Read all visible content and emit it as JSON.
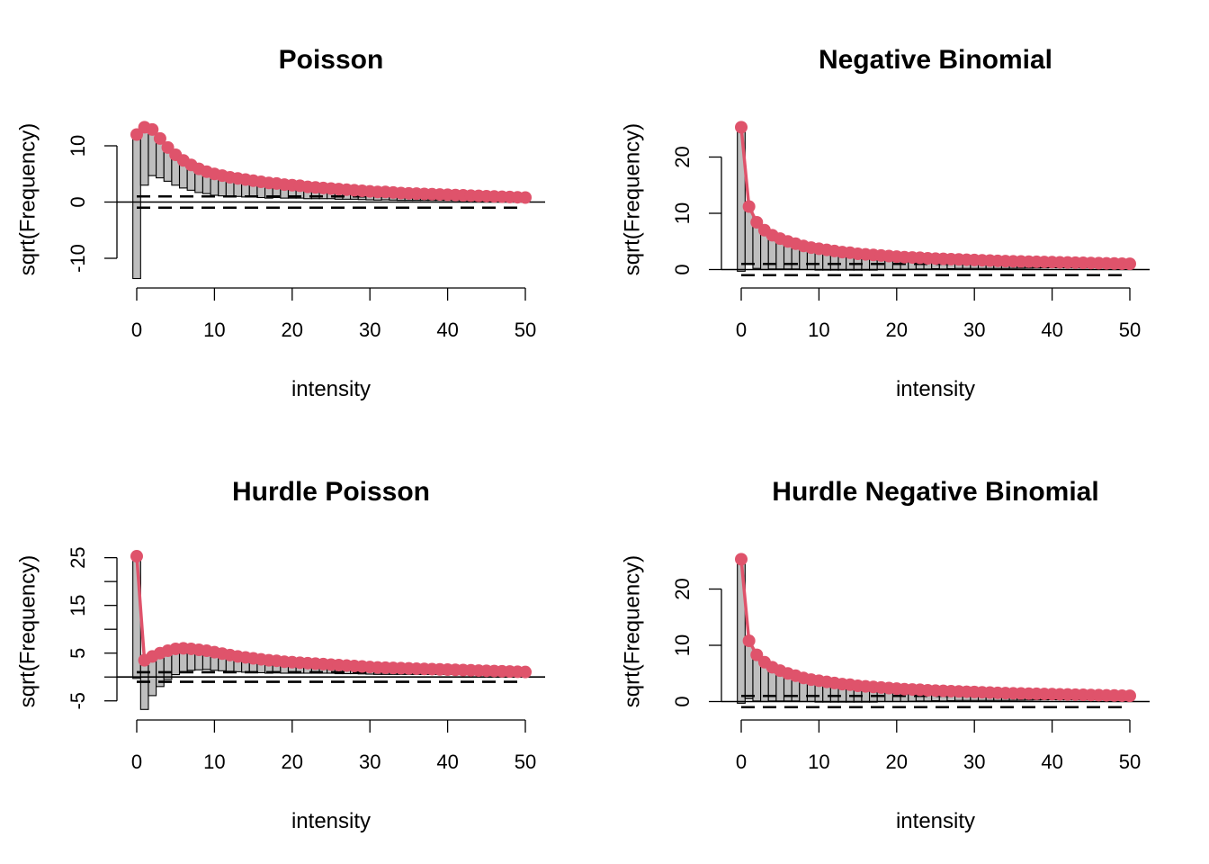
{
  "chart_data": [
    {
      "type": "rootogram",
      "style": "hanging",
      "title": "Poisson",
      "xlabel": "intensity",
      "ylabel": "sqrt(Frequency)",
      "xlim": [
        0,
        50
      ],
      "ylim": [
        -14,
        14
      ],
      "xticks": [
        0,
        10,
        20,
        30,
        40,
        50
      ],
      "yticks": [
        -10,
        0,
        10
      ],
      "ytick_labels": [
        "-10",
        "0",
        "10"
      ],
      "reference_lines": [
        -1,
        1
      ],
      "x": [
        0,
        1,
        2,
        3,
        4,
        5,
        6,
        7,
        8,
        9,
        10,
        11,
        12,
        13,
        14,
        15,
        16,
        17,
        18,
        19,
        20,
        21,
        22,
        23,
        24,
        25,
        26,
        27,
        28,
        29,
        30,
        31,
        32,
        33,
        34,
        35,
        36,
        37,
        38,
        39,
        40,
        41,
        42,
        43,
        44,
        45,
        46,
        47,
        48,
        49,
        50
      ],
      "expected": [
        12.0,
        13.3,
        12.9,
        11.3,
        9.7,
        8.4,
        7.4,
        6.6,
        5.9,
        5.4,
        5.0,
        4.7,
        4.4,
        4.2,
        4.0,
        3.8,
        3.6,
        3.4,
        3.3,
        3.1,
        3.0,
        2.9,
        2.7,
        2.6,
        2.5,
        2.4,
        2.3,
        2.2,
        2.1,
        2.0,
        1.9,
        1.8,
        1.8,
        1.7,
        1.6,
        1.55,
        1.5,
        1.45,
        1.4,
        1.35,
        1.3,
        1.25,
        1.2,
        1.15,
        1.1,
        1.05,
        1.0,
        0.95,
        0.9,
        0.85,
        0.8
      ],
      "observed": [
        25.6,
        10.3,
        8.2,
        7.0,
        6.0,
        5.4,
        4.9,
        4.5,
        4.2,
        3.9,
        3.8,
        3.6,
        3.4,
        3.2,
        3.1,
        2.9,
        2.8,
        2.7,
        2.5,
        2.4,
        2.3,
        2.2,
        2.1,
        2.0,
        1.9,
        1.8,
        1.8,
        1.7,
        1.6,
        1.55,
        1.5,
        1.45,
        1.4,
        1.35,
        1.3,
        1.25,
        1.2,
        1.15,
        1.1,
        1.05,
        1.0,
        0.98,
        0.95,
        0.92,
        0.9,
        0.85,
        0.82,
        0.8,
        0.78,
        0.75,
        0.72
      ]
    },
    {
      "type": "rootogram",
      "style": "hanging",
      "title": "Negative Binomial",
      "xlabel": "intensity",
      "ylabel": "sqrt(Frequency)",
      "xlim": [
        0,
        50
      ],
      "ylim": [
        -2,
        26
      ],
      "xticks": [
        0,
        10,
        20,
        30,
        40,
        50
      ],
      "yticks": [
        0,
        10,
        20
      ],
      "ytick_labels": [
        "0",
        "10",
        "20"
      ],
      "reference_lines": [
        -1,
        1
      ],
      "x": [
        0,
        1,
        2,
        3,
        4,
        5,
        6,
        7,
        8,
        9,
        10,
        11,
        12,
        13,
        14,
        15,
        16,
        17,
        18,
        19,
        20,
        21,
        22,
        23,
        24,
        25,
        26,
        27,
        28,
        29,
        30,
        31,
        32,
        33,
        34,
        35,
        36,
        37,
        38,
        39,
        40,
        41,
        42,
        43,
        44,
        45,
        46,
        47,
        48,
        49,
        50
      ],
      "expected": [
        25.3,
        11.2,
        8.4,
        7.0,
        6.1,
        5.5,
        5.0,
        4.6,
        4.2,
        3.9,
        3.7,
        3.5,
        3.3,
        3.1,
        3.0,
        2.8,
        2.7,
        2.6,
        2.5,
        2.4,
        2.3,
        2.2,
        2.15,
        2.1,
        2.0,
        1.95,
        1.9,
        1.85,
        1.8,
        1.75,
        1.7,
        1.65,
        1.6,
        1.55,
        1.5,
        1.47,
        1.44,
        1.41,
        1.38,
        1.35,
        1.32,
        1.29,
        1.26,
        1.23,
        1.2,
        1.17,
        1.14,
        1.11,
        1.08,
        1.05,
        1.02
      ],
      "observed": [
        25.6,
        10.3,
        8.2,
        7.0,
        6.0,
        5.4,
        4.9,
        4.5,
        4.2,
        3.9,
        3.8,
        3.6,
        3.4,
        3.2,
        3.1,
        2.9,
        2.8,
        2.7,
        2.5,
        2.4,
        2.3,
        2.2,
        2.1,
        2.0,
        1.9,
        1.8,
        1.8,
        1.7,
        1.6,
        1.55,
        1.5,
        1.45,
        1.4,
        1.35,
        1.3,
        1.25,
        1.2,
        1.15,
        1.1,
        1.05,
        1.0,
        0.98,
        0.95,
        0.92,
        0.9,
        0.85,
        0.82,
        0.8,
        0.78,
        0.75,
        0.72
      ]
    },
    {
      "type": "rootogram",
      "style": "hanging",
      "title": "Hurdle Poisson",
      "xlabel": "intensity",
      "ylabel": "sqrt(Frequency)",
      "xlim": [
        0,
        50
      ],
      "ylim": [
        -7.5,
        25.5
      ],
      "xticks": [
        0,
        10,
        20,
        30,
        40,
        50
      ],
      "yticks": [
        -5,
        0,
        5,
        10,
        15,
        20,
        25
      ],
      "ytick_labels": [
        "-5",
        "",
        "5",
        "",
        "15",
        "",
        "25"
      ],
      "reference_lines": [
        -1,
        1
      ],
      "x": [
        0,
        1,
        2,
        3,
        4,
        5,
        6,
        7,
        8,
        9,
        10,
        11,
        12,
        13,
        14,
        15,
        16,
        17,
        18,
        19,
        20,
        21,
        22,
        23,
        24,
        25,
        26,
        27,
        28,
        29,
        30,
        31,
        32,
        33,
        34,
        35,
        36,
        37,
        38,
        39,
        40,
        41,
        42,
        43,
        44,
        45,
        46,
        47,
        48,
        49,
        50
      ],
      "expected": [
        25.3,
        3.5,
        4.3,
        5.0,
        5.5,
        5.9,
        6.0,
        5.9,
        5.7,
        5.5,
        5.2,
        4.9,
        4.6,
        4.3,
        4.1,
        3.9,
        3.7,
        3.5,
        3.4,
        3.2,
        3.1,
        3.0,
        2.9,
        2.8,
        2.7,
        2.6,
        2.5,
        2.4,
        2.3,
        2.2,
        2.1,
        2.0,
        1.95,
        1.9,
        1.85,
        1.8,
        1.75,
        1.7,
        1.65,
        1.6,
        1.55,
        1.5,
        1.45,
        1.4,
        1.35,
        1.3,
        1.25,
        1.2,
        1.15,
        1.1,
        1.05
      ],
      "observed": [
        25.6,
        10.3,
        8.2,
        7.0,
        6.0,
        5.4,
        4.9,
        4.5,
        4.2,
        3.9,
        3.8,
        3.6,
        3.4,
        3.2,
        3.1,
        2.9,
        2.8,
        2.7,
        2.5,
        2.4,
        2.3,
        2.2,
        2.1,
        2.0,
        1.9,
        1.8,
        1.8,
        1.7,
        1.6,
        1.55,
        1.5,
        1.45,
        1.4,
        1.35,
        1.3,
        1.25,
        1.2,
        1.15,
        1.1,
        1.05,
        1.0,
        0.98,
        0.95,
        0.92,
        0.9,
        0.85,
        0.82,
        0.8,
        0.78,
        0.75,
        0.72
      ]
    },
    {
      "type": "rootogram",
      "style": "hanging",
      "title": "Hurdle Negative Binomial",
      "xlabel": "intensity",
      "ylabel": "sqrt(Frequency)",
      "xlim": [
        0,
        50
      ],
      "ylim": [
        -2,
        26
      ],
      "xticks": [
        0,
        10,
        20,
        30,
        40,
        50
      ],
      "yticks": [
        0,
        10,
        20
      ],
      "ytick_labels": [
        "0",
        "10",
        "20"
      ],
      "reference_lines": [
        -1,
        1
      ],
      "x": [
        0,
        1,
        2,
        3,
        4,
        5,
        6,
        7,
        8,
        9,
        10,
        11,
        12,
        13,
        14,
        15,
        16,
        17,
        18,
        19,
        20,
        21,
        22,
        23,
        24,
        25,
        26,
        27,
        28,
        29,
        30,
        31,
        32,
        33,
        34,
        35,
        36,
        37,
        38,
        39,
        40,
        41,
        42,
        43,
        44,
        45,
        46,
        47,
        48,
        49,
        50
      ],
      "expected": [
        25.3,
        10.8,
        8.3,
        7.0,
        6.1,
        5.5,
        5.0,
        4.6,
        4.2,
        3.9,
        3.7,
        3.5,
        3.3,
        3.1,
        3.0,
        2.8,
        2.7,
        2.6,
        2.5,
        2.4,
        2.3,
        2.2,
        2.15,
        2.1,
        2.0,
        1.95,
        1.9,
        1.85,
        1.8,
        1.75,
        1.7,
        1.65,
        1.6,
        1.55,
        1.5,
        1.47,
        1.44,
        1.41,
        1.38,
        1.35,
        1.32,
        1.29,
        1.26,
        1.23,
        1.2,
        1.17,
        1.14,
        1.11,
        1.08,
        1.05,
        1.02
      ],
      "observed": [
        25.6,
        10.3,
        8.2,
        7.0,
        6.0,
        5.4,
        4.9,
        4.5,
        4.2,
        3.9,
        3.8,
        3.6,
        3.4,
        3.2,
        3.1,
        2.9,
        2.8,
        2.7,
        2.5,
        2.4,
        2.3,
        2.2,
        2.1,
        2.0,
        1.9,
        1.8,
        1.8,
        1.7,
        1.6,
        1.55,
        1.5,
        1.45,
        1.4,
        1.35,
        1.3,
        1.25,
        1.2,
        1.15,
        1.1,
        1.05,
        1.0,
        0.98,
        0.95,
        0.92,
        0.9,
        0.85,
        0.82,
        0.8,
        0.78,
        0.75,
        0.72
      ]
    }
  ],
  "colors": {
    "fit": "#DF536B",
    "bar_fill": "#bebebe",
    "axis": "#000000"
  }
}
